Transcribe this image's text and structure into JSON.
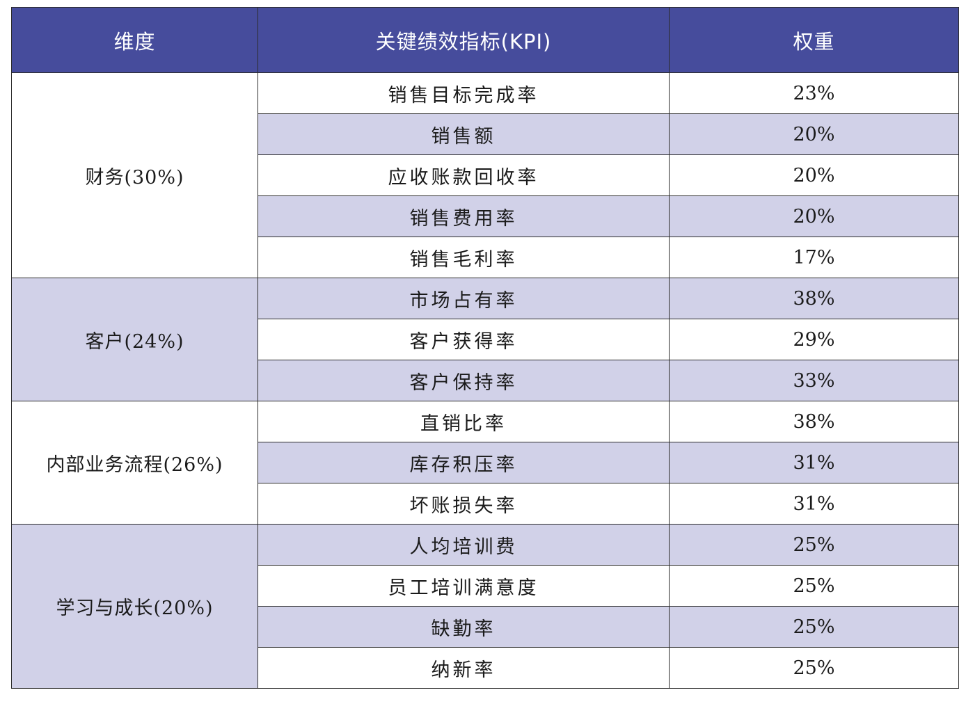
{
  "table": {
    "headers": {
      "dimension": "维度",
      "kpi": "关键绩效指标(KPI)",
      "weight": "权重"
    },
    "colors": {
      "header_bg": "#464c9c",
      "header_text": "#ffffff",
      "row_shade": "#d1d1e8"
    },
    "groups": [
      {
        "dimension": "财务(30%)",
        "rows": [
          {
            "kpi": "销售目标完成率",
            "weight": "23%"
          },
          {
            "kpi": "销售额",
            "weight": "20%"
          },
          {
            "kpi": "应收账款回收率",
            "weight": "20%"
          },
          {
            "kpi": "销售费用率",
            "weight": "20%"
          },
          {
            "kpi": "销售毛利率",
            "weight": "17%"
          }
        ]
      },
      {
        "dimension": "客户(24%)",
        "rows": [
          {
            "kpi": "市场占有率",
            "weight": "38%"
          },
          {
            "kpi": "客户获得率",
            "weight": "29%"
          },
          {
            "kpi": "客户保持率",
            "weight": "33%"
          }
        ]
      },
      {
        "dimension": "内部业务流程(26%)",
        "rows": [
          {
            "kpi": "直销比率",
            "weight": "38%"
          },
          {
            "kpi": "库存积压率",
            "weight": "31%"
          },
          {
            "kpi": "坏账损失率",
            "weight": "31%"
          }
        ]
      },
      {
        "dimension": "学习与成长(20%)",
        "rows": [
          {
            "kpi": "人均培训费",
            "weight": "25%"
          },
          {
            "kpi": "员工培训满意度",
            "weight": "25%"
          },
          {
            "kpi": "缺勤率",
            "weight": "25%"
          },
          {
            "kpi": "纳新率",
            "weight": "25%"
          }
        ]
      }
    ]
  }
}
